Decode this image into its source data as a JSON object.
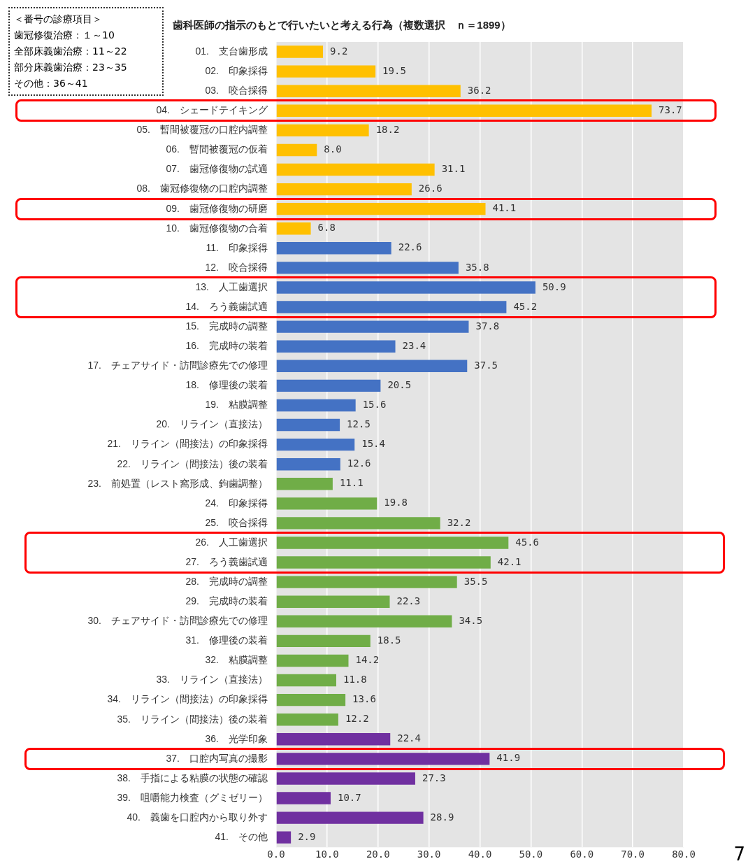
{
  "chart_data": {
    "type": "bar",
    "orientation": "horizontal",
    "title": "歯科医師の指示のもとで行いたいと考える行為（複数選択　ｎ＝1899）",
    "categories": [
      "01.　支台歯形成",
      "02.　印象採得",
      "03.　咬合採得",
      "04.　シェードテイキング",
      "05.　暫間被覆冠の口腔内調整",
      "06.　暫間被覆冠の仮着",
      "07.　歯冠修復物の試適",
      "08.　歯冠修復物の口腔内調整",
      "09.　歯冠修復物の研磨",
      "10.　歯冠修復物の合着",
      "11.　印象採得",
      "12.　咬合採得",
      "13.　人工歯選択",
      "14.　ろう義歯試適",
      "15.　完成時の調整",
      "16.　完成時の装着",
      "17.　チェアサイド・訪問診療先での修理",
      "18.　修理後の装着",
      "19.　粘膜調整",
      "20.　リライン（直接法）",
      "21.　リライン（間接法）の印象採得",
      "22.　リライン（間接法）後の装着",
      "23.　前処置（レスト窩形成、鉤歯調整）",
      "24.　印象採得",
      "25.　咬合採得",
      "26.　人工歯選択",
      "27.　ろう義歯試適",
      "28.　完成時の調整",
      "29.　完成時の装着",
      "30.　チェアサイド・訪問診療先での修理",
      "31.　修理後の装着",
      "32.　粘膜調整",
      "33.　リライン（直接法）",
      "34.　リライン（間接法）の印象採得",
      "35.　リライン（間接法）後の装着",
      "36.　光学印象",
      "37.　口腔内写真の撮影",
      "38.　手指による粘膜の状態の確認",
      "39.　咀嚼能力検査（グミゼリー）",
      "40.　義歯を口腔内から取り外す",
      "41.　その他"
    ],
    "values": [
      9.2,
      19.5,
      36.2,
      73.7,
      18.2,
      8.0,
      31.1,
      26.6,
      41.1,
      6.8,
      22.6,
      35.8,
      50.9,
      45.2,
      37.8,
      23.4,
      37.5,
      20.5,
      15.6,
      12.5,
      15.4,
      12.6,
      11.1,
      19.8,
      32.2,
      45.6,
      42.1,
      35.5,
      22.3,
      34.5,
      18.5,
      14.2,
      11.8,
      13.6,
      12.2,
      22.4,
      41.9,
      27.3,
      10.7,
      28.9,
      2.9
    ],
    "value_labels": [
      "9.2",
      "19.5",
      "36.2",
      "73.7",
      "18.2",
      "8.0",
      "31.1",
      "26.6",
      "41.1",
      "6.8",
      "22.6",
      "35.8",
      "50.9",
      "45.2",
      "37.8",
      "23.4",
      "37.5",
      "20.5",
      "15.6",
      "12.5",
      "15.4",
      "12.6",
      "11.1",
      "19.8",
      "32.2",
      "45.6",
      "42.1",
      "35.5",
      "22.3",
      "34.5",
      "18.5",
      "14.2",
      "11.8",
      "13.6",
      "12.2",
      "22.4",
      "41.9",
      "27.3",
      "10.7",
      "28.9",
      "2.9"
    ],
    "colors": [
      "#ffc000",
      "#ffc000",
      "#ffc000",
      "#ffc000",
      "#ffc000",
      "#ffc000",
      "#ffc000",
      "#ffc000",
      "#ffc000",
      "#ffc000",
      "#4472c4",
      "#4472c4",
      "#4472c4",
      "#4472c4",
      "#4472c4",
      "#4472c4",
      "#4472c4",
      "#4472c4",
      "#4472c4",
      "#4472c4",
      "#4472c4",
      "#4472c4",
      "#70ad47",
      "#70ad47",
      "#70ad47",
      "#70ad47",
      "#70ad47",
      "#70ad47",
      "#70ad47",
      "#70ad47",
      "#70ad47",
      "#70ad47",
      "#70ad47",
      "#70ad47",
      "#70ad47",
      "#7030a0",
      "#7030a0",
      "#7030a0",
      "#7030a0",
      "#7030a0",
      "#7030a0"
    ],
    "xlim": [
      0,
      80
    ],
    "xticks": [
      {
        "value": 0,
        "label": "0.0"
      },
      {
        "value": 10,
        "label": "10.0"
      },
      {
        "value": 20,
        "label": "20.0"
      },
      {
        "value": 30,
        "label": "30.0"
      },
      {
        "value": 40,
        "label": "40.0"
      },
      {
        "value": 50,
        "label": "50.0"
      },
      {
        "value": 60,
        "label": "60.0"
      },
      {
        "value": 70,
        "label": "70.0"
      },
      {
        "value": 80,
        "label": "80.0"
      }
    ],
    "grid": "x",
    "legend": false,
    "annotations": [
      "＜番号の診療項目＞",
      "歯冠修復治療：１～10",
      "全部床義歯治療：11～22",
      "部分床義歯治療：23～35",
      "その他：36～41",
      "7"
    ]
  }
}
